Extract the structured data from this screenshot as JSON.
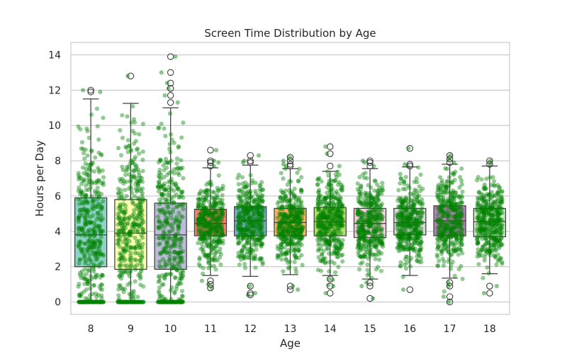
{
  "chart_data": {
    "type": "box",
    "title": "Screen Time Distribution by Age",
    "xlabel": "Age",
    "ylabel": "Hours per Day",
    "categories": [
      "8",
      "9",
      "10",
      "11",
      "12",
      "13",
      "14",
      "15",
      "16",
      "17",
      "18"
    ],
    "ylim": [
      -0.7,
      14.7
    ],
    "yticks": [
      0,
      2,
      4,
      6,
      8,
      10,
      12,
      14
    ],
    "grid": "horizontal",
    "jitter_color": "#008000",
    "box_colors": [
      "#8dd3c7",
      "#ffffb3",
      "#bebada",
      "#fb8072",
      "#80b1d3",
      "#fdb462",
      "#b3de69",
      "#fccde5",
      "#d9d9d9",
      "#bc80bd",
      "#ccebc5"
    ],
    "boxes": [
      {
        "category": "8",
        "whisker_low": 0.0,
        "q1": 2.0,
        "median": 3.8,
        "q3": 5.9,
        "whisker_high": 11.5,
        "outliers": [
          11.9,
          12.0
        ]
      },
      {
        "category": "9",
        "whisker_low": 0.0,
        "q1": 1.85,
        "median": 3.9,
        "q3": 5.8,
        "whisker_high": 11.25,
        "outliers": [
          12.8
        ]
      },
      {
        "category": "10",
        "whisker_low": 0.0,
        "q1": 1.85,
        "median": 3.8,
        "q3": 5.6,
        "whisker_high": 11.0,
        "outliers": [
          11.3,
          11.7,
          12.1,
          12.4,
          13.0,
          13.9
        ]
      },
      {
        "category": "11",
        "whisker_low": 1.5,
        "q1": 3.75,
        "median": 4.45,
        "q3": 5.25,
        "whisker_high": 7.6,
        "outliers": [
          0.8,
          1.0,
          1.2,
          7.7,
          7.9,
          8.0,
          8.6
        ]
      },
      {
        "category": "12",
        "whisker_low": 1.45,
        "q1": 3.75,
        "median": 4.6,
        "q3": 5.4,
        "whisker_high": 7.75,
        "outliers": [
          0.4,
          0.5,
          0.9,
          7.9,
          8.0,
          8.3
        ]
      },
      {
        "category": "13",
        "whisker_low": 1.55,
        "q1": 3.75,
        "median": 4.5,
        "q3": 5.3,
        "whisker_high": 7.55,
        "outliers": [
          0.7,
          0.9,
          7.7,
          7.8,
          8.0,
          8.2
        ]
      },
      {
        "category": "14",
        "whisker_low": 1.5,
        "q1": 3.75,
        "median": 4.55,
        "q3": 5.35,
        "whisker_high": 7.4,
        "outliers": [
          0.5,
          0.9,
          1.3,
          7.7,
          8.4,
          8.8
        ]
      },
      {
        "category": "15",
        "whisker_low": 1.3,
        "q1": 3.65,
        "median": 4.45,
        "q3": 5.3,
        "whisker_high": 7.55,
        "outliers": [
          0.2,
          0.9,
          1.1,
          7.7,
          7.9,
          8.0
        ]
      },
      {
        "category": "16",
        "whisker_low": 1.5,
        "q1": 3.8,
        "median": 4.5,
        "q3": 5.3,
        "whisker_high": 7.65,
        "outliers": [
          0.7,
          7.7,
          7.8,
          8.7
        ]
      },
      {
        "category": "17",
        "whisker_low": 1.35,
        "q1": 3.75,
        "median": 4.6,
        "q3": 5.45,
        "whisker_high": 7.8,
        "outliers": [
          0.0,
          0.3,
          0.9,
          1.1,
          7.9,
          8.1,
          8.3
        ]
      },
      {
        "category": "18",
        "whisker_low": 1.6,
        "q1": 3.7,
        "median": 4.55,
        "q3": 5.3,
        "whisker_high": 7.7,
        "outliers": [
          0.5,
          0.9,
          7.8,
          8.0
        ]
      }
    ]
  }
}
